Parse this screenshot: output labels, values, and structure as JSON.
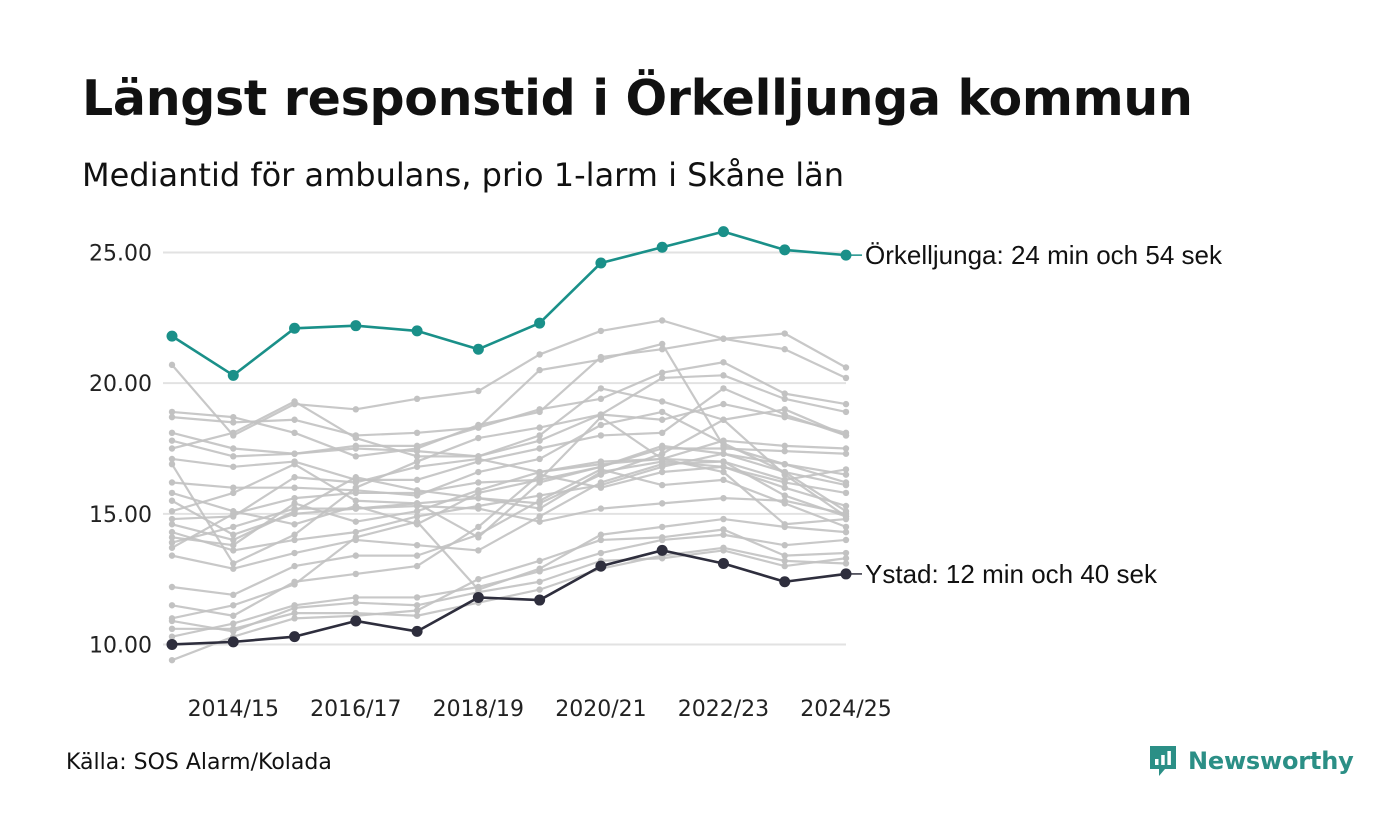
{
  "colors": {
    "accent": "#1a9089",
    "highlight_low": "#2e2e3d",
    "background_lines": "#c2c2c2",
    "gridline": "#e2e2e2",
    "brand": "#2b8f86"
  },
  "footer": {
    "source": "Källa: SOS Alarm/Kolada",
    "brand_name": "Newsworthy"
  },
  "chart_data": {
    "type": "line",
    "title": "Längst responstid i Örkelljunga kommun",
    "subtitle": "Mediantid för ambulans, prio 1-larm i Skåne län",
    "xlabel": "",
    "ylabel": "",
    "x": [
      "2013/14",
      "2014/15",
      "2015/16",
      "2016/17",
      "2017/18",
      "2018/19",
      "2019/20",
      "2020/21",
      "2021/22",
      "2022/23",
      "2023/24",
      "2024/25"
    ],
    "x_tick_labels": [
      "2014/15",
      "2016/17",
      "2018/19",
      "2020/21",
      "2022/23",
      "2024/25"
    ],
    "y_ticks": [
      10,
      15,
      20,
      25
    ],
    "y_tick_labels": [
      "10.00",
      "15.00",
      "20.00",
      "25.00"
    ],
    "ylim": [
      9.1,
      25.9
    ],
    "highlight_series": [
      {
        "name": "Örkelljunga",
        "label": "Örkelljunga: 24 min och 54 sek",
        "color": "#1a9089",
        "values": [
          21.8,
          20.3,
          22.1,
          22.2,
          22.0,
          21.3,
          22.3,
          24.6,
          25.2,
          25.8,
          25.1,
          24.9
        ]
      },
      {
        "name": "Ystad",
        "label": "Ystad: 12 min och 40 sek",
        "color": "#2e2e3d",
        "values": [
          10.0,
          10.1,
          10.3,
          10.9,
          10.5,
          11.8,
          11.7,
          13.0,
          13.6,
          13.1,
          12.4,
          12.7
        ]
      }
    ],
    "other_series": [
      {
        "values": [
          20.7,
          18.0,
          19.2,
          19.0,
          19.4,
          19.7,
          21.1,
          22.0,
          22.4,
          21.7,
          21.3,
          20.2
        ]
      },
      {
        "values": [
          18.9,
          18.7,
          18.1,
          17.2,
          17.5,
          18.4,
          18.9,
          21.0,
          21.3,
          21.7,
          21.9,
          20.6
        ]
      },
      {
        "values": [
          18.7,
          18.5,
          18.6,
          18.0,
          18.1,
          18.3,
          20.5,
          20.9,
          21.5,
          17.6,
          16.9,
          16.2
        ]
      },
      {
        "values": [
          18.1,
          17.5,
          17.3,
          17.6,
          17.6,
          18.3,
          19.0,
          19.4,
          20.4,
          20.8,
          19.6,
          19.2
        ]
      },
      {
        "values": [
          17.8,
          17.2,
          17.3,
          17.5,
          17.4,
          17.2,
          18.0,
          19.8,
          19.3,
          18.6,
          19.0,
          18.0
        ]
      },
      {
        "values": [
          17.5,
          18.1,
          19.3,
          17.9,
          17.2,
          17.2,
          17.8,
          18.8,
          20.2,
          20.3,
          19.4,
          18.9
        ]
      },
      {
        "values": [
          17.1,
          16.8,
          17.0,
          16.3,
          16.3,
          17.0,
          17.5,
          18.0,
          18.1,
          19.8,
          18.8,
          18.0
        ]
      },
      {
        "values": [
          16.9,
          13.1,
          14.2,
          16.0,
          17.0,
          17.9,
          18.3,
          18.8,
          18.6,
          19.2,
          18.7,
          18.1
        ]
      },
      {
        "values": [
          16.2,
          16.0,
          16.0,
          15.9,
          15.7,
          16.6,
          17.1,
          18.4,
          18.9,
          17.7,
          16.6,
          15.1
        ]
      },
      {
        "values": [
          15.8,
          15.1,
          14.6,
          15.3,
          14.6,
          15.8,
          16.3,
          16.8,
          17.6,
          17.3,
          16.6,
          16.1
        ]
      },
      {
        "values": [
          15.5,
          14.2,
          15.0,
          15.2,
          15.4,
          15.6,
          15.4,
          16.5,
          17.3,
          18.6,
          16.5,
          14.9
        ]
      },
      {
        "values": [
          15.1,
          15.8,
          16.9,
          15.5,
          15.4,
          14.1,
          16.2,
          16.8,
          17.5,
          17.5,
          17.4,
          17.3
        ]
      },
      {
        "values": [
          14.8,
          14.9,
          16.4,
          16.2,
          16.8,
          17.1,
          16.6,
          16.9,
          17.1,
          17.8,
          17.6,
          17.5
        ]
      },
      {
        "values": [
          14.6,
          14.0,
          15.1,
          16.4,
          15.9,
          15.6,
          15.2,
          16.6,
          17.0,
          16.8,
          16.0,
          15.3
        ]
      },
      {
        "values": [
          14.3,
          13.6,
          14.0,
          14.3,
          14.9,
          15.3,
          15.7,
          16.1,
          16.8,
          17.3,
          16.9,
          16.5
        ]
      },
      {
        "values": [
          14.1,
          13.8,
          15.4,
          14.7,
          15.1,
          15.9,
          16.6,
          17.0,
          17.1,
          17.0,
          16.3,
          16.7
        ]
      },
      {
        "values": [
          13.9,
          14.5,
          15.2,
          15.2,
          15.3,
          15.2,
          14.7,
          15.2,
          15.4,
          15.6,
          15.5,
          15.0
        ]
      },
      {
        "values": [
          13.7,
          15.0,
          15.6,
          15.8,
          15.8,
          16.2,
          16.3,
          18.7,
          17.1,
          16.6,
          14.6,
          14.8
        ]
      },
      {
        "values": [
          13.4,
          12.9,
          13.5,
          14.0,
          13.8,
          13.6,
          14.9,
          16.2,
          16.9,
          17.0,
          15.7,
          14.9
        ]
      },
      {
        "values": [
          12.2,
          11.9,
          13.0,
          13.4,
          13.4,
          14.2,
          15.5,
          16.7,
          16.1,
          16.3,
          15.4,
          14.5
        ]
      },
      {
        "values": [
          11.5,
          11.1,
          12.4,
          12.7,
          13.0,
          14.5,
          16.5,
          16.0,
          16.6,
          16.8,
          16.2,
          15.8
        ]
      },
      {
        "values": [
          11.0,
          11.5,
          12.3,
          14.1,
          14.7,
          12.1,
          12.9,
          14.2,
          14.5,
          14.8,
          14.5,
          14.3
        ]
      },
      {
        "values": [
          10.9,
          10.5,
          11.4,
          11.6,
          11.5,
          12.0,
          12.4,
          13.2,
          13.3,
          13.6,
          13.0,
          13.3
        ]
      },
      {
        "values": [
          10.6,
          10.6,
          11.2,
          11.2,
          11.1,
          11.6,
          12.1,
          12.9,
          13.4,
          13.7,
          13.2,
          13.1
        ]
      },
      {
        "values": [
          10.3,
          10.8,
          11.5,
          11.8,
          11.8,
          12.2,
          12.8,
          13.5,
          14.0,
          14.2,
          13.8,
          14.0
        ]
      },
      {
        "values": [
          9.4,
          10.3,
          11.0,
          11.1,
          11.3,
          12.5,
          13.2,
          14.0,
          14.1,
          14.4,
          13.4,
          13.5
        ]
      }
    ]
  }
}
